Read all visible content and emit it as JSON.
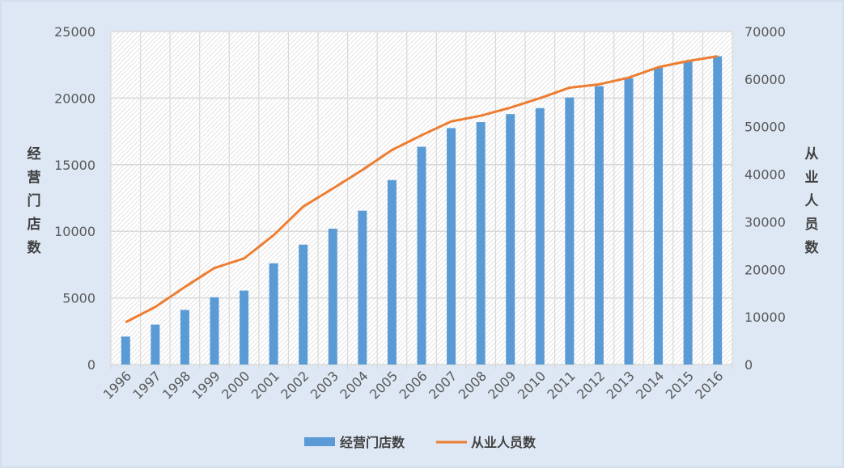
{
  "chart_data": {
    "type": "bar+line",
    "categories": [
      "1996",
      "1997",
      "1998",
      "1999",
      "2000",
      "2001",
      "2002",
      "2003",
      "2004",
      "2005",
      "2006",
      "2007",
      "2008",
      "2009",
      "2010",
      "2011",
      "2012",
      "2013",
      "2014",
      "2015",
      "2016"
    ],
    "series": [
      {
        "name": "经营门店数",
        "type": "bar",
        "axis": "left",
        "color": "#5b9bd5",
        "values": [
          2100,
          3000,
          4100,
          5050,
          5550,
          7600,
          9000,
          10200,
          11550,
          13850,
          16350,
          17750,
          18200,
          18800,
          19250,
          20050,
          20900,
          21500,
          22300,
          22800,
          23150
        ]
      },
      {
        "name": "从业人员数",
        "type": "line",
        "axis": "right",
        "color": "#ed7d31",
        "values": [
          8900,
          12100,
          16300,
          20300,
          22300,
          27200,
          33200,
          37000,
          40900,
          45100,
          48200,
          51100,
          52300,
          54000,
          56000,
          58200,
          58900,
          60300,
          62500,
          63800,
          64800
        ]
      }
    ],
    "yleft": {
      "label": "经营门店数",
      "lim": [
        0,
        25000
      ],
      "ticks": [
        "0",
        "5000",
        "10000",
        "15000",
        "20000",
        "25000"
      ]
    },
    "yright": {
      "label": "从业人员数",
      "lim": [
        0,
        70000
      ],
      "ticks": [
        "0",
        "10000",
        "20000",
        "30000",
        "40000",
        "50000",
        "60000",
        "70000"
      ]
    },
    "grid": true,
    "legend": "bottom"
  }
}
